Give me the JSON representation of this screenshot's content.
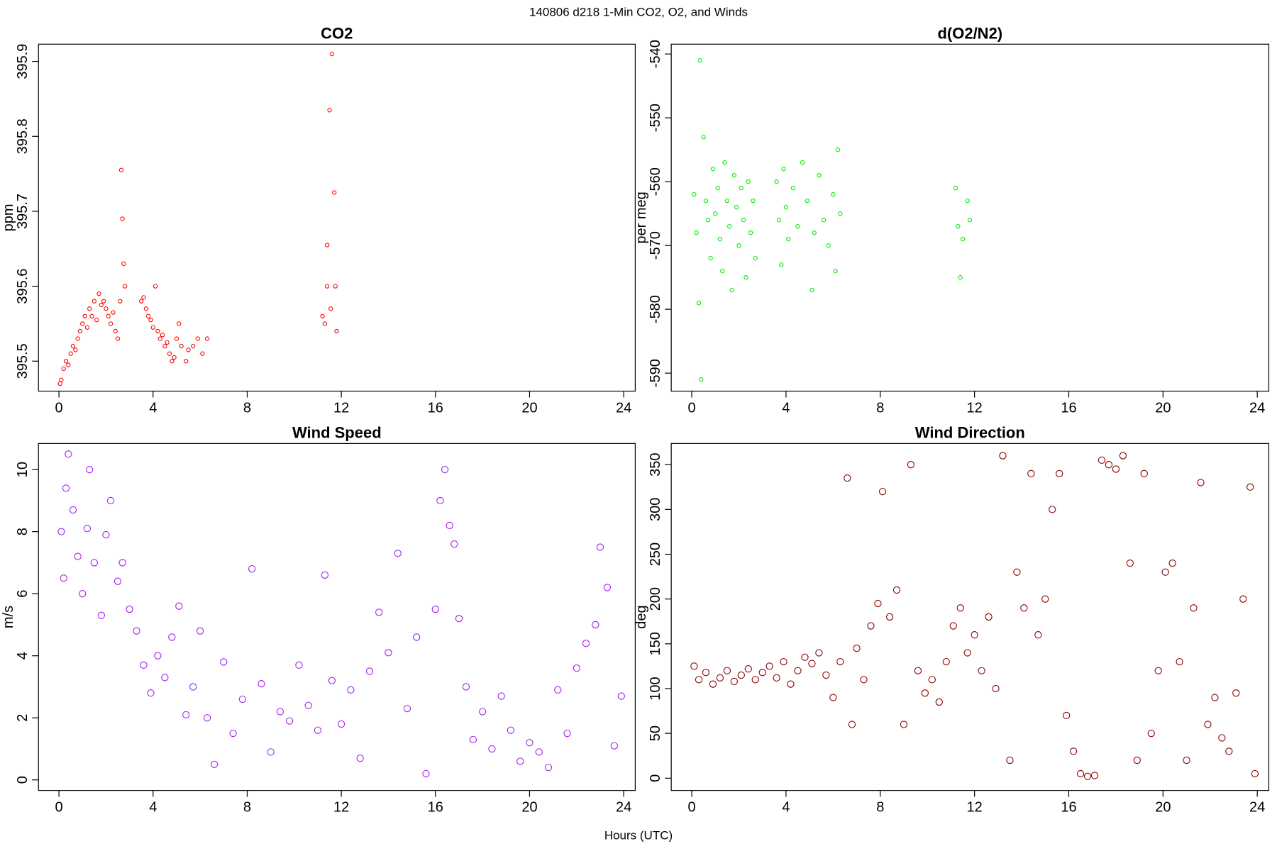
{
  "title": "140806   d218   1-Min CO2, O2, and Winds",
  "xlabel": "Hours (UTC)",
  "chart_data": [
    {
      "type": "scatter",
      "title": "CO2",
      "ylabel": "ppm",
      "color": "#ff0000",
      "xlim": [
        -0.87,
        24.49
      ],
      "ylim": [
        395.46,
        395.923
      ],
      "xticks": [
        0,
        4,
        8,
        12,
        16,
        20,
        24
      ],
      "yticks": [
        395.5,
        395.6,
        395.7,
        395.8,
        395.9
      ],
      "x": [
        0.05,
        0.1,
        0.2,
        0.3,
        0.4,
        0.5,
        0.6,
        0.7,
        0.8,
        0.9,
        1.0,
        1.1,
        1.2,
        1.3,
        1.4,
        1.5,
        1.6,
        1.7,
        1.8,
        1.9,
        2.0,
        2.1,
        2.2,
        2.3,
        2.4,
        2.5,
        2.6,
        2.65,
        2.7,
        2.75,
        2.8,
        3.5,
        3.6,
        3.7,
        3.8,
        3.9,
        4.0,
        4.1,
        4.2,
        4.3,
        4.4,
        4.5,
        4.6,
        4.7,
        4.8,
        4.9,
        5.0,
        5.1,
        5.2,
        5.4,
        5.5,
        5.7,
        5.9,
        6.1,
        6.3,
        11.2,
        11.3,
        11.4,
        11.4,
        11.5,
        11.55,
        11.6,
        11.7,
        11.75,
        11.8
      ],
      "values": [
        395.47,
        395.475,
        395.49,
        395.5,
        395.495,
        395.51,
        395.52,
        395.515,
        395.53,
        395.54,
        395.55,
        395.56,
        395.545,
        395.57,
        395.56,
        395.58,
        395.555,
        395.59,
        395.575,
        395.58,
        395.57,
        395.56,
        395.55,
        395.565,
        395.54,
        395.53,
        395.58,
        395.755,
        395.69,
        395.63,
        395.6,
        395.58,
        395.585,
        395.57,
        395.56,
        395.555,
        395.545,
        395.6,
        395.54,
        395.53,
        395.535,
        395.52,
        395.525,
        395.51,
        395.5,
        395.505,
        395.53,
        395.55,
        395.52,
        395.5,
        395.515,
        395.52,
        395.53,
        395.51,
        395.53,
        395.56,
        395.55,
        395.6,
        395.655,
        395.835,
        395.57,
        395.91,
        395.725,
        395.6,
        395.54
      ]
    },
    {
      "type": "scatter",
      "title": "d(O2/N2)",
      "ylabel": "per meg",
      "color": "#00ee00",
      "xlim": [
        -0.87,
        24.49
      ],
      "ylim": [
        -592.82,
        -538.46
      ],
      "xticks": [
        0,
        4,
        8,
        12,
        16,
        20,
        24
      ],
      "yticks": [
        -590,
        -580,
        -570,
        -560,
        -550,
        -540
      ],
      "x": [
        0.1,
        0.2,
        0.3,
        0.35,
        0.4,
        0.5,
        0.6,
        0.7,
        0.8,
        0.9,
        1.0,
        1.1,
        1.2,
        1.3,
        1.4,
        1.5,
        1.6,
        1.7,
        1.8,
        1.9,
        2.0,
        2.1,
        2.2,
        2.3,
        2.4,
        2.5,
        2.6,
        2.7,
        3.6,
        3.7,
        3.8,
        3.9,
        4.0,
        4.1,
        4.3,
        4.5,
        4.7,
        4.9,
        5.1,
        5.2,
        5.4,
        5.6,
        5.8,
        6.0,
        6.1,
        6.2,
        6.3,
        11.2,
        11.3,
        11.4,
        11.5,
        11.7,
        11.8
      ],
      "values": [
        -562,
        -568,
        -579,
        -541,
        -591,
        -553,
        -563,
        -566,
        -572,
        -558,
        -565,
        -561,
        -569,
        -574,
        -557,
        -563,
        -567,
        -577,
        -559,
        -564,
        -570,
        -561,
        -566,
        -575,
        -560,
        -568,
        -563,
        -572,
        -560,
        -566,
        -573,
        -558,
        -564,
        -569,
        -561,
        -567,
        -557,
        -563,
        -577,
        -568,
        -559,
        -566,
        -570,
        -562,
        -574,
        -555,
        -565,
        -561,
        -567,
        -575,
        -569,
        -563,
        -566
      ]
    },
    {
      "type": "scatter",
      "title": "Wind Speed",
      "ylabel": "m/s",
      "color": "#a020f0",
      "xlim": [
        -0.87,
        24.49
      ],
      "ylim": [
        -0.34,
        10.84
      ],
      "xticks": [
        0,
        4,
        8,
        12,
        16,
        20,
        24
      ],
      "yticks": [
        0,
        2,
        4,
        6,
        8,
        10
      ],
      "x": [
        0.1,
        0.2,
        0.3,
        0.4,
        0.6,
        0.8,
        1.0,
        1.2,
        1.3,
        1.5,
        1.8,
        2.0,
        2.2,
        2.5,
        2.7,
        3.0,
        3.3,
        3.6,
        3.9,
        4.2,
        4.5,
        4.8,
        5.1,
        5.4,
        5.7,
        6.0,
        6.3,
        6.6,
        7.0,
        7.4,
        7.8,
        8.2,
        8.6,
        9.0,
        9.4,
        9.8,
        10.2,
        10.6,
        11.0,
        11.3,
        11.6,
        12.0,
        12.4,
        12.8,
        13.2,
        13.6,
        14.0,
        14.4,
        14.8,
        15.2,
        15.6,
        16.0,
        16.2,
        16.4,
        16.6,
        16.8,
        17.0,
        17.3,
        17.6,
        18.0,
        18.4,
        18.8,
        19.2,
        19.6,
        20.0,
        20.4,
        20.8,
        21.2,
        21.6,
        22.0,
        22.4,
        22.8,
        23.0,
        23.3,
        23.6,
        23.9
      ],
      "values": [
        8.0,
        6.5,
        9.4,
        10.5,
        8.7,
        7.2,
        6.0,
        8.1,
        10.0,
        7.0,
        5.3,
        7.9,
        9.0,
        6.4,
        7.0,
        5.5,
        4.8,
        3.7,
        2.8,
        4.0,
        3.3,
        4.6,
        5.6,
        2.1,
        3.0,
        4.8,
        2.0,
        0.5,
        3.8,
        1.5,
        2.6,
        6.8,
        3.1,
        0.9,
        2.2,
        1.9,
        3.7,
        2.4,
        1.6,
        6.6,
        3.2,
        1.8,
        2.9,
        0.7,
        3.5,
        5.4,
        4.1,
        7.3,
        2.3,
        4.6,
        0.2,
        5.5,
        9.0,
        10.0,
        8.2,
        7.6,
        5.2,
        3.0,
        1.3,
        2.2,
        1.0,
        2.7,
        1.6,
        0.6,
        1.2,
        0.9,
        0.4,
        2.9,
        1.5,
        3.6,
        4.4,
        5.0,
        7.5,
        6.2,
        1.1,
        2.7
      ]
    },
    {
      "type": "scatter",
      "title": "Wind Direction",
      "ylabel": "deg",
      "color": "#8b0000",
      "xlim": [
        -0.87,
        24.49
      ],
      "ylim": [
        -13.7,
        373.6
      ],
      "xticks": [
        0,
        4,
        8,
        12,
        16,
        20,
        24
      ],
      "yticks": [
        0,
        50,
        100,
        150,
        200,
        250,
        300,
        350
      ],
      "x": [
        0.1,
        0.3,
        0.6,
        0.9,
        1.2,
        1.5,
        1.8,
        2.1,
        2.4,
        2.7,
        3.0,
        3.3,
        3.6,
        3.9,
        4.2,
        4.5,
        4.8,
        5.1,
        5.4,
        5.7,
        6.0,
        6.3,
        6.6,
        6.8,
        7.0,
        7.3,
        7.6,
        7.9,
        8.1,
        8.4,
        8.7,
        9.0,
        9.3,
        9.6,
        9.9,
        10.2,
        10.5,
        10.8,
        11.1,
        11.4,
        11.7,
        12.0,
        12.3,
        12.6,
        12.9,
        13.2,
        13.5,
        13.8,
        14.1,
        14.4,
        14.7,
        15.0,
        15.3,
        15.6,
        15.9,
        16.2,
        16.5,
        16.8,
        17.1,
        17.4,
        17.7,
        18.0,
        18.3,
        18.6,
        18.9,
        19.2,
        19.5,
        19.8,
        20.1,
        20.4,
        20.7,
        21.0,
        21.3,
        21.6,
        21.9,
        22.2,
        22.5,
        22.8,
        23.1,
        23.4,
        23.7,
        23.9
      ],
      "values": [
        125,
        110,
        118,
        105,
        112,
        120,
        108,
        115,
        122,
        110,
        118,
        125,
        112,
        130,
        105,
        120,
        135,
        128,
        140,
        115,
        90,
        130,
        335,
        60,
        145,
        110,
        170,
        195,
        320,
        180,
        210,
        60,
        350,
        120,
        95,
        110,
        85,
        130,
        170,
        190,
        140,
        160,
        120,
        180,
        100,
        360,
        20,
        230,
        190,
        340,
        160,
        200,
        300,
        340,
        70,
        30,
        5,
        2,
        3,
        355,
        350,
        345,
        360,
        240,
        20,
        340,
        50,
        120,
        230,
        240,
        130,
        20,
        190,
        330,
        60,
        90,
        45,
        30,
        95,
        200,
        325,
        5
      ]
    }
  ]
}
